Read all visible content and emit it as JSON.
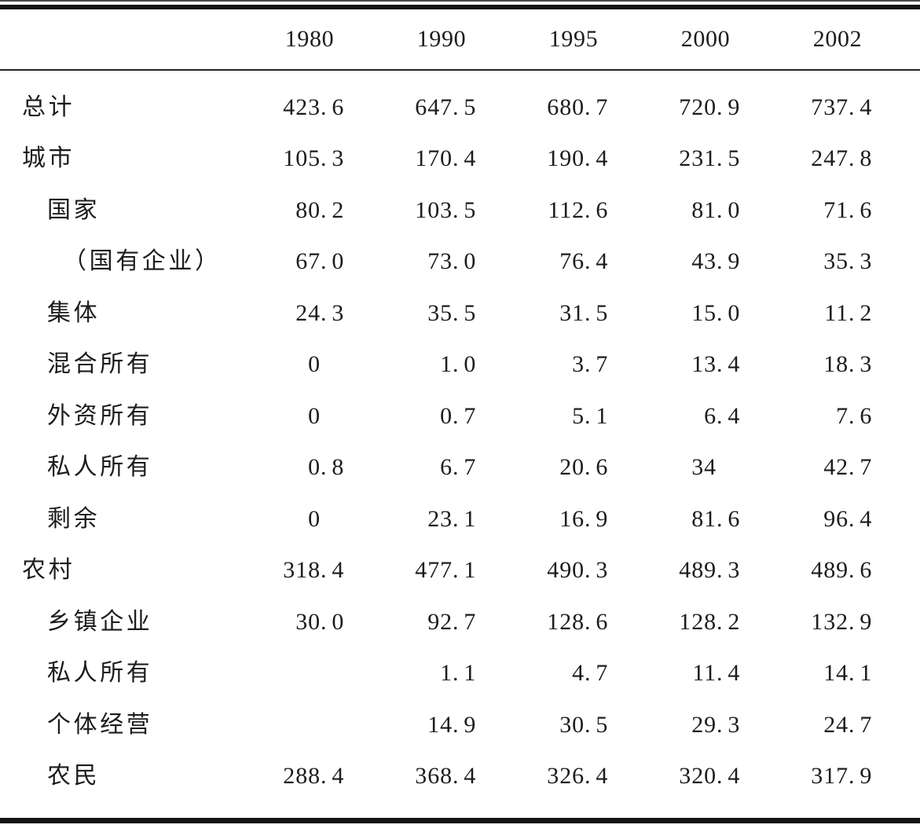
{
  "page": {
    "background": "#ffffff",
    "text_color": "#1c1c1c",
    "rule_color": "#141414"
  },
  "table": {
    "columns": [
      "1980",
      "1990",
      "1995",
      "2000",
      "2002"
    ],
    "rows": [
      {
        "label": "总计",
        "indent": 0,
        "values": [
          "423.6",
          "647.5",
          "680.7",
          "720.9",
          "737.4"
        ]
      },
      {
        "label": "城市",
        "indent": 0,
        "values": [
          "105.3",
          "170.4",
          "190.4",
          "231.5",
          "247.8"
        ]
      },
      {
        "label": "国家",
        "indent": 1,
        "values": [
          "80.2",
          "103.5",
          "112.6",
          "81.0",
          "71.6"
        ]
      },
      {
        "label": "（国有企业）",
        "indent": 2,
        "values": [
          "67.0",
          "73.0",
          "76.4",
          "43.9",
          "35.3"
        ]
      },
      {
        "label": "集体",
        "indent": 1,
        "values": [
          "24.3",
          "35.5",
          "31.5",
          "15.0",
          "11.2"
        ]
      },
      {
        "label": "混合所有",
        "indent": 1,
        "values": [
          "0",
          "1.0",
          "3.7",
          "13.4",
          "18.3"
        ]
      },
      {
        "label": "外资所有",
        "indent": 1,
        "values": [
          "0",
          "0.7",
          "5.1",
          "6.4",
          "7.6"
        ]
      },
      {
        "label": "私人所有",
        "indent": 1,
        "values": [
          "0.8",
          "6.7",
          "20.6",
          "34",
          "42.7"
        ]
      },
      {
        "label": "剩余",
        "indent": 1,
        "values": [
          "0",
          "23.1",
          "16.9",
          "81.6",
          "96.4"
        ]
      },
      {
        "label": "农村",
        "indent": 0,
        "values": [
          "318.4",
          "477.1",
          "490.3",
          "489.3",
          "489.6"
        ]
      },
      {
        "label": "乡镇企业",
        "indent": 1,
        "values": [
          "30.0",
          "92.7",
          "128.6",
          "128.2",
          "132.9"
        ]
      },
      {
        "label": "私人所有",
        "indent": 1,
        "values": [
          "",
          "1.1",
          "4.7",
          "11.4",
          "14.1"
        ]
      },
      {
        "label": "个体经营",
        "indent": 1,
        "values": [
          "",
          "14.9",
          "30.5",
          "29.3",
          "24.7"
        ]
      },
      {
        "label": "农民",
        "indent": 1,
        "values": [
          "288.4",
          "368.4",
          "326.4",
          "320.4",
          "317.9"
        ]
      }
    ]
  }
}
